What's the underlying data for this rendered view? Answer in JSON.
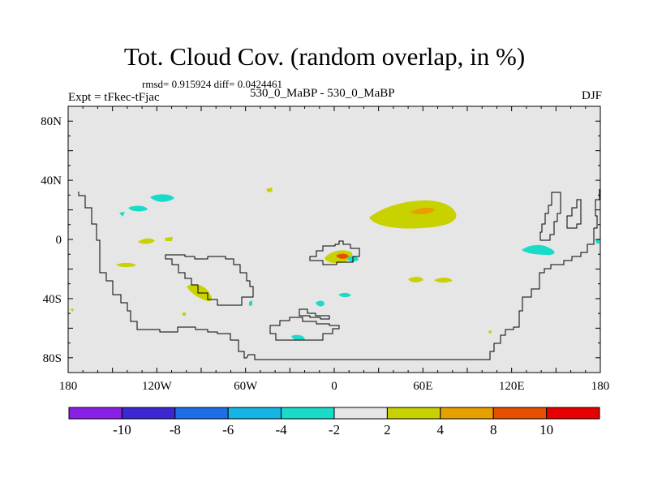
{
  "title": "Tot. Cloud Cov. (random overlap, in %)",
  "stats_text": "rmsd= 0.915924 diff= 0.0424461",
  "left_label": "Expt = tFkec-tFjac",
  "center_label": "530_0_MaBP - 530_0_MaBP",
  "season": "DJF",
  "map": {
    "background_color": "#e6e6e6",
    "lon_range": [
      -180,
      180
    ],
    "lat_range": [
      -90,
      90
    ],
    "x_tick_labels": [
      "180",
      "120W",
      "60W",
      "0",
      "60E",
      "120E",
      "180"
    ],
    "y_tick_labels": [
      "80N",
      "40N",
      "0",
      "40S",
      "80S"
    ]
  },
  "colorbar": {
    "colors": [
      "#8a1ee6",
      "#3c28d2",
      "#1e6ee6",
      "#14b4e6",
      "#18dcc8",
      "#e6e6e6",
      "#c8d200",
      "#e6a000",
      "#e65000",
      "#e60000"
    ],
    "labels": [
      "-10",
      "-8",
      "-6",
      "-4",
      "-2",
      "2",
      "4",
      "8",
      "10"
    ]
  }
}
